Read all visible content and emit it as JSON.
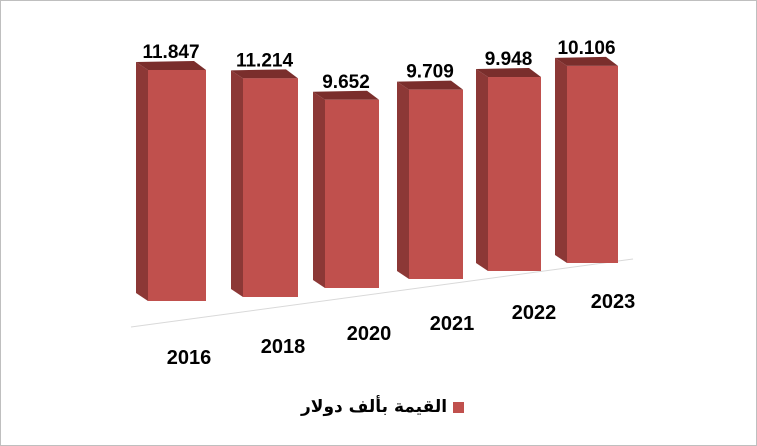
{
  "chart_data": {
    "type": "bar",
    "categories": [
      "2016",
      "2018",
      "2020",
      "2021",
      "2022",
      "2023"
    ],
    "series": [
      {
        "name": "القيمة بألف دولار",
        "values": [
          11.847,
          11.214,
          9.652,
          9.709,
          9.948,
          10.106
        ],
        "labels": [
          "11.847",
          "11.214",
          "9.652",
          "9.709",
          "9.948",
          "10.106"
        ]
      }
    ],
    "three_d": true,
    "grid": false,
    "legend_position": "bottom",
    "colors": {
      "front": "#c0504d",
      "side": "#8c3836",
      "top": "#7a2e2c"
    }
  }
}
